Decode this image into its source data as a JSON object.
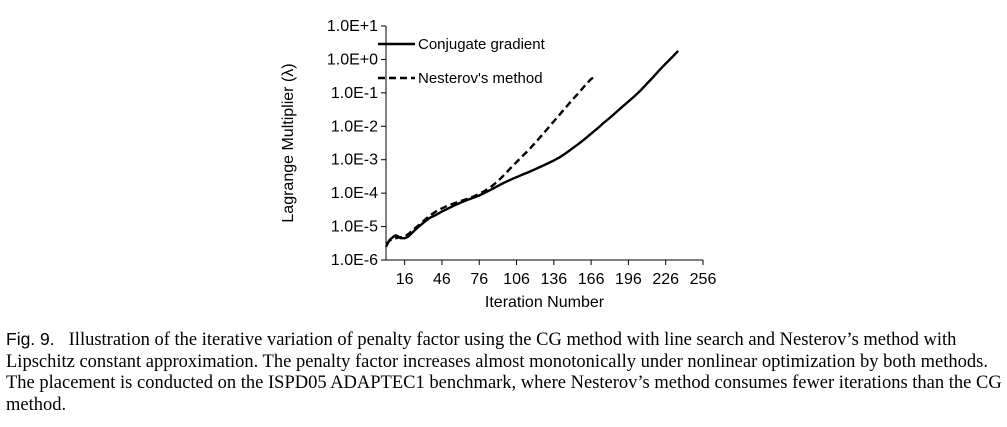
{
  "chart_data": {
    "type": "line",
    "title": "",
    "xlabel": "Iteration Number",
    "ylabel": "Lagrange Multiplier (λ)",
    "y_scale": "log",
    "xlim": [
      1,
      256
    ],
    "ylim": [
      1e-06,
      10
    ],
    "x_ticks": [
      16,
      46,
      76,
      106,
      136,
      166,
      196,
      226,
      256
    ],
    "x_tick_labels": [
      "16",
      "46",
      "76",
      "106",
      "136",
      "166",
      "196",
      "226",
      "256"
    ],
    "y_ticks": [
      1e-06,
      1e-05,
      0.0001,
      0.001,
      0.01,
      0.1,
      1,
      10
    ],
    "y_tick_labels": [
      "1.0E-6",
      "1.0E-5",
      "1.0E-4",
      "1.0E-3",
      "1.0E-2",
      "1.0E-1",
      "1.0E+0",
      "1.0E+1"
    ],
    "grid": false,
    "legend_position": "top-left",
    "series": [
      {
        "name": "Conjugate gradient",
        "style": "solid",
        "color": "#000000",
        "points": [
          [
            1,
            2.5e-06
          ],
          [
            4,
            4e-06
          ],
          [
            7,
            5e-06
          ],
          [
            9,
            5.5e-06
          ],
          [
            11,
            5e-06
          ],
          [
            13,
            4.5e-06
          ],
          [
            16,
            4.5e-06
          ],
          [
            19,
            5e-06
          ],
          [
            22,
            6.5e-06
          ],
          [
            26,
            9e-06
          ],
          [
            31,
            1.3e-05
          ],
          [
            36,
            1.8e-05
          ],
          [
            41,
            2.2e-05
          ],
          [
            46,
            2.8e-05
          ],
          [
            51,
            3.5e-05
          ],
          [
            56,
            4.3e-05
          ],
          [
            61,
            5.2e-05
          ],
          [
            66,
            6.2e-05
          ],
          [
            71,
            7.2e-05
          ],
          [
            76,
            8.5e-05
          ],
          [
            81,
            0.000105
          ],
          [
            86,
            0.00013
          ],
          [
            91,
            0.000165
          ],
          [
            96,
            0.000205
          ],
          [
            101,
            0.00025
          ],
          [
            106,
            0.0003
          ],
          [
            111,
            0.00036
          ],
          [
            116,
            0.00043
          ],
          [
            121,
            0.00052
          ],
          [
            126,
            0.00063
          ],
          [
            131,
            0.00077
          ],
          [
            136,
            0.00095
          ],
          [
            141,
            0.0012
          ],
          [
            146,
            0.0016
          ],
          [
            151,
            0.0022
          ],
          [
            156,
            0.003
          ],
          [
            161,
            0.0042
          ],
          [
            166,
            0.006
          ],
          [
            171,
            0.0085
          ],
          [
            176,
            0.0125
          ],
          [
            181,
            0.018
          ],
          [
            186,
            0.026
          ],
          [
            191,
            0.038
          ],
          [
            196,
            0.055
          ],
          [
            201,
            0.08
          ],
          [
            206,
            0.12
          ],
          [
            211,
            0.19
          ],
          [
            216,
            0.3
          ],
          [
            221,
            0.48
          ],
          [
            226,
            0.75
          ],
          [
            231,
            1.15
          ],
          [
            236,
            1.8
          ]
        ]
      },
      {
        "name": "Nesterov's method",
        "style": "dashed",
        "color": "#000000",
        "points": [
          [
            1,
            3e-06
          ],
          [
            4,
            3.8e-06
          ],
          [
            7,
            4.3e-06
          ],
          [
            10,
            4.6e-06
          ],
          [
            13,
            4.8e-06
          ],
          [
            16,
            5e-06
          ],
          [
            19,
            6e-06
          ],
          [
            22,
            7.5e-06
          ],
          [
            26,
            1e-05
          ],
          [
            31,
            1.45e-05
          ],
          [
            36,
            2.1e-05
          ],
          [
            41,
            2.8e-05
          ],
          [
            46,
            3.5e-05
          ],
          [
            51,
            4.3e-05
          ],
          [
            56,
            5e-05
          ],
          [
            61,
            5.8e-05
          ],
          [
            66,
            6.7e-05
          ],
          [
            71,
            7.8e-05
          ],
          [
            76,
            9.5e-05
          ],
          [
            81,
            0.00012
          ],
          [
            86,
            0.00016
          ],
          [
            91,
            0.00023
          ],
          [
            96,
            0.00035
          ],
          [
            101,
            0.00055
          ],
          [
            106,
            0.00085
          ],
          [
            111,
            0.0013
          ],
          [
            116,
            0.002
          ],
          [
            121,
            0.0032
          ],
          [
            126,
            0.0052
          ],
          [
            131,
            0.0085
          ],
          [
            136,
            0.014
          ],
          [
            141,
            0.023
          ],
          [
            146,
            0.038
          ],
          [
            151,
            0.063
          ],
          [
            156,
            0.1
          ],
          [
            161,
            0.165
          ],
          [
            166,
            0.26
          ],
          [
            170,
            0.33
          ]
        ]
      }
    ]
  },
  "caption": {
    "label": "Fig. 9.",
    "text": "Illustration of the iterative variation of penalty factor using the CG method with line search and Nesterov’s method with Lipschitz constant approximation. The penalty factor increases almost monotonically under nonlinear optimization by both methods. The placement is conducted on the ISPD05 ADAPTEC1 benchmark, where Nesterov’s method consumes fewer iterations than the CG method."
  }
}
